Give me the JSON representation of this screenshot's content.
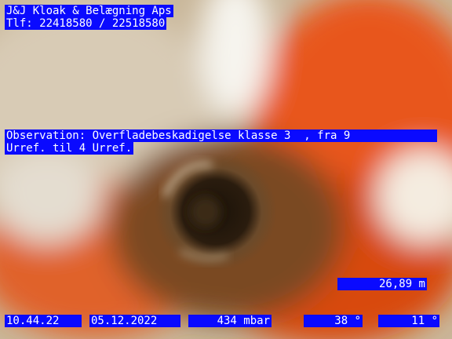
{
  "header": {
    "company": "J&J Kloak & Belægning Aps",
    "phone": "Tlf: 22418580 / 22518580"
  },
  "observation": {
    "lines": [
      "Observation: Overfladebeskadigelse klasse 3  , fra 9",
      "Urref. til 4 Urref."
    ]
  },
  "distance": "26,89 m",
  "footer": {
    "time": "10.44.22",
    "date": "05.12.2022",
    "pressure": "434 mbar",
    "angle1": "38 °",
    "angle2": "11 °"
  }
}
